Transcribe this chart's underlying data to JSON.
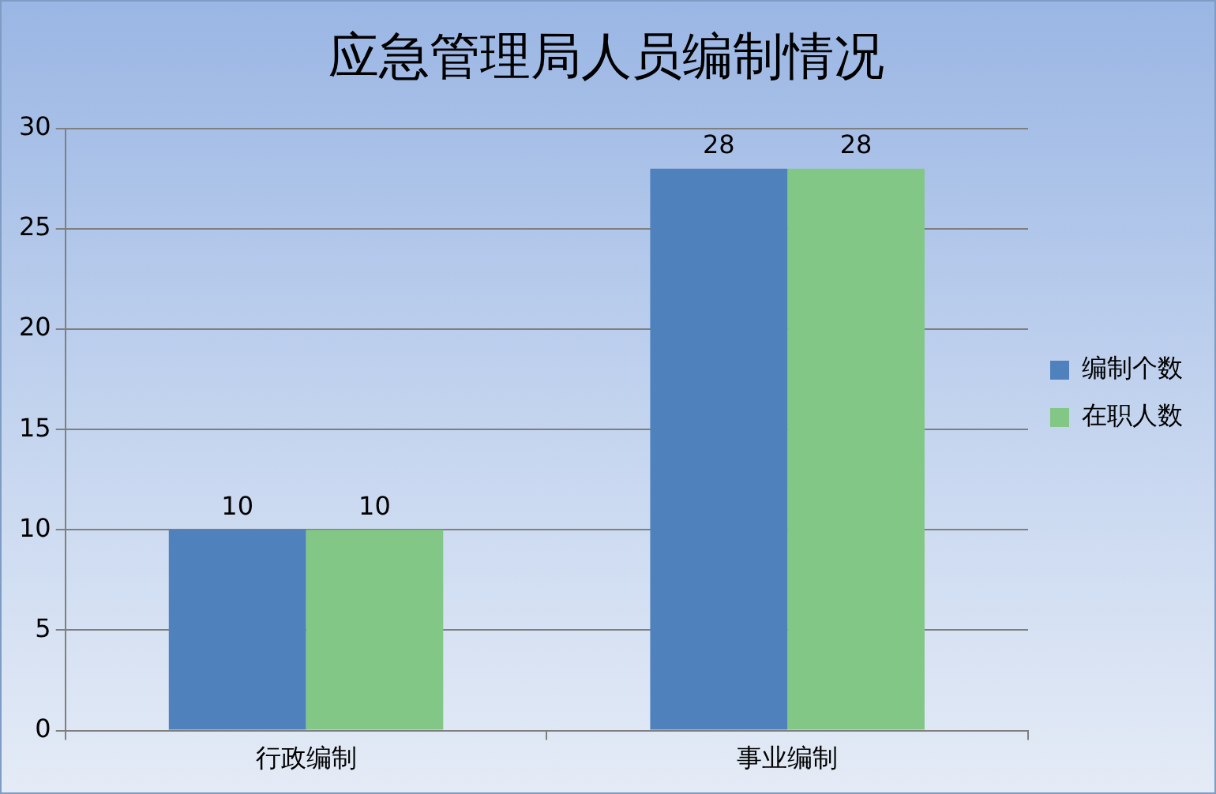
{
  "chart_data": {
    "type": "bar",
    "title": "应急管理局人员编制情况",
    "categories": [
      "行政编制",
      "事业编制"
    ],
    "series": [
      {
        "name": "编制个数",
        "color": "#4f81bd",
        "values": [
          10,
          28
        ]
      },
      {
        "name": "在职人数",
        "color": "#82c785",
        "values": [
          10,
          28
        ]
      }
    ],
    "ylim": [
      0,
      30
    ],
    "yticks": [
      0,
      5,
      10,
      15,
      20,
      25,
      30
    ],
    "grid": "y",
    "legend": "right",
    "data_labels": true
  }
}
